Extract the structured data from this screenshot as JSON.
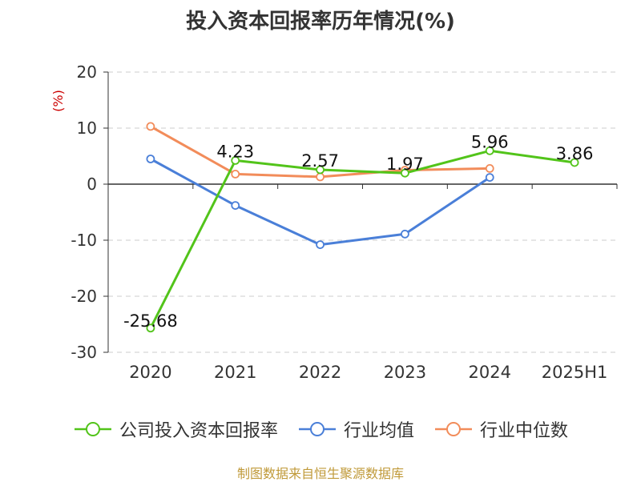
{
  "title": "投入资本回报率历年情况(%)",
  "source": "制图数据来自恒生聚源数据库",
  "colors": {
    "company": "#52c41a",
    "industry_avg": "#4a7fd8",
    "industry_median": "#f28c5a",
    "axis_unit": "#cc0000",
    "grid": "#cccccc",
    "axis": "#333333",
    "source": "#c09a3a"
  },
  "chart_data": {
    "type": "line",
    "title": "投入资本回报率历年情况(%)",
    "ylabel": "(%)",
    "xlabel": "",
    "categories": [
      "2020",
      "2021",
      "2022",
      "2023",
      "2024",
      "2025H1"
    ],
    "ylim": [
      -30,
      20
    ],
    "yticks": [
      -30,
      -20,
      -10,
      0,
      10,
      20
    ],
    "grid": "horizontal dashed",
    "legend_position": "bottom",
    "series": [
      {
        "name": "公司投入资本回报率",
        "values": [
          -25.68,
          4.23,
          2.57,
          1.97,
          5.96,
          3.86
        ],
        "labels": [
          "-25.68",
          "4.23",
          "2.57",
          "1.97",
          "5.96",
          "3.86"
        ]
      },
      {
        "name": "行业均值",
        "values": [
          4.5,
          -3.8,
          -10.8,
          -8.9,
          1.2,
          null
        ]
      },
      {
        "name": "行业中位数",
        "values": [
          10.3,
          1.8,
          1.3,
          2.5,
          2.8,
          null
        ]
      }
    ]
  }
}
